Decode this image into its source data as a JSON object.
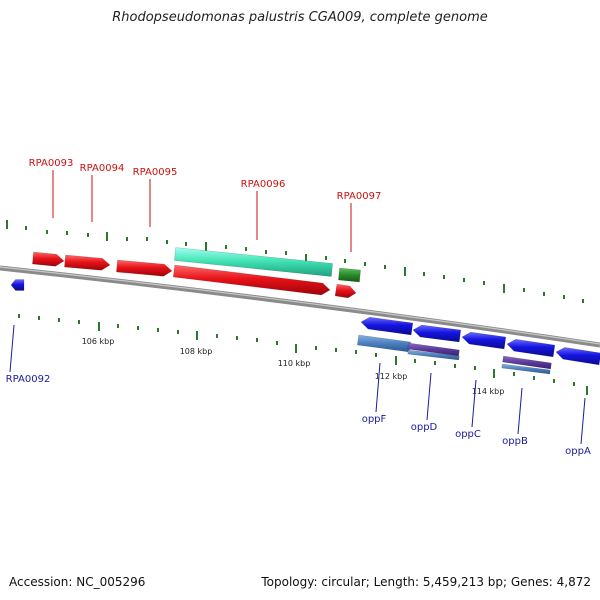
{
  "title": "Rhodopseudomonas palustris CGA009, complete genome",
  "footer": {
    "accession": "Accession: NC_005296",
    "stats": "Topology: circular; Length: 5,459,213 bp; Genes: 4,872"
  },
  "colors": {
    "forward_gene": "#e8141a",
    "reverse_gene": "#1414e0",
    "forward_label": "#cc1010",
    "reverse_label": "#1a1aa0",
    "cds_highlight": "#3de0b0",
    "alt_feature": "#2a8a2a",
    "reverse_feature": "#4a7fbf",
    "reverse_feature_alt": "#5a3a9a",
    "tick": "#2a7a2a",
    "backbone": "#888888"
  },
  "scale": {
    "labels": [
      "106 kbp",
      "108 kbp",
      "110 kbp",
      "112 kbp",
      "114 kbp"
    ]
  },
  "genes": {
    "forward": [
      "RPA0093",
      "RPA0094",
      "RPA0095",
      "RPA0096",
      "RPA0097"
    ],
    "reverse": [
      "RPA0092",
      "oppF",
      "oppD",
      "oppC",
      "oppB",
      "oppA"
    ]
  }
}
